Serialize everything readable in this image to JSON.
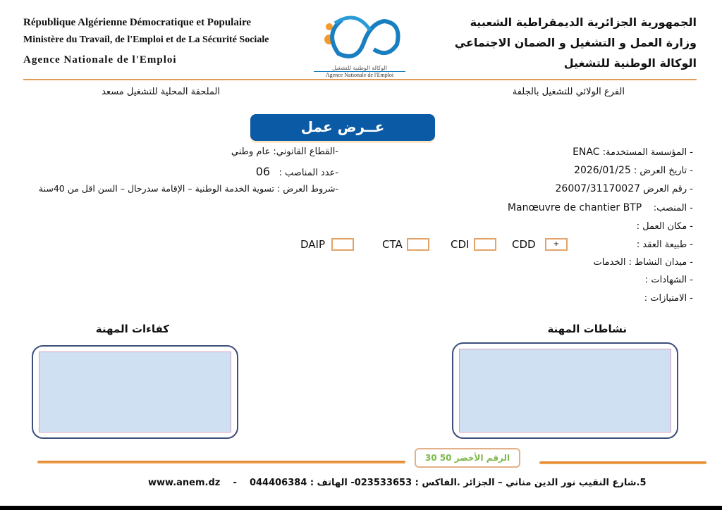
{
  "header": {
    "fr_lines": [
      "République Algérienne Démocratique et Populaire",
      "Ministère du Travail, de l'Emploi et de La Sécurité Sociale",
      "Agence  Nationale  de  l'Emploi"
    ],
    "ar_lines": [
      "الجمهورية الجزائرية الديمقراطية الشعبية",
      "وزارة العمل و التشغيل و الضمان الاجتماعي",
      "الوكالة الوطنية للتشغيل"
    ],
    "logo_ar": "الوكالة الوطنية للتشغيل",
    "logo_fr": "Agence Nationale de l'Emploi",
    "branch_right": "الفرع الولائي للتشغيل بالجلفة",
    "branch_left": "الملحقة المحلية للتشغيل مسعد"
  },
  "title": "عــرض عمل",
  "colors": {
    "title_bg": "#0b5aa5",
    "rule": "#e09a55",
    "box_border": "#3c4e7a",
    "box_fill": "#cfe0f3",
    "green": "#7cb84a"
  },
  "right_fields": [
    {
      "label": "- المؤسسة المستخدمة:",
      "value": "ENAC"
    },
    {
      "label": "- تاريخ العرض :",
      "value": "2026/01/25"
    },
    {
      "label": "- رقم العرض",
      "value": "26007/31170027"
    },
    {
      "label": "- المنصب:",
      "value": "Manœuvre de chantier BTP"
    },
    {
      "label": "- مكان العمل :",
      "value": ""
    },
    {
      "label": "- طبيعة العقد :",
      "value": ""
    },
    {
      "label": "- ميدان النشاط :",
      "value": "الخدمات"
    },
    {
      "label": "- الشهادات :",
      "value": ""
    },
    {
      "label": "- الامتيازات :",
      "value": ""
    }
  ],
  "left_fields": [
    {
      "label": "-القطاع القانوني:",
      "value": "عام وطني"
    },
    {
      "label": "-عدد المناصب :",
      "value": "06"
    },
    {
      "label": "-شروط العرض :",
      "value": "تسوية الخدمة الوطنية – الإقامة سدرحال – السن اقل من 40سنة"
    }
  ],
  "contract_types": [
    {
      "label": "CDD",
      "checked": true,
      "mark": "+"
    },
    {
      "label": "CDI",
      "checked": false
    },
    {
      "label": "CTA",
      "checked": false
    },
    {
      "label": "DAIP",
      "checked": false
    }
  ],
  "sections": {
    "activities": "نشاطات المهنة",
    "skills": "كفاءات المهنة"
  },
  "footer": {
    "green_number": "الرقم الأخضر 50 30",
    "address": "5.شارع النقيب نور الدين مناني – الجزائر .الفاكس : 023533653- الهاتف : 044406384",
    "website": "www.anem.dz"
  }
}
